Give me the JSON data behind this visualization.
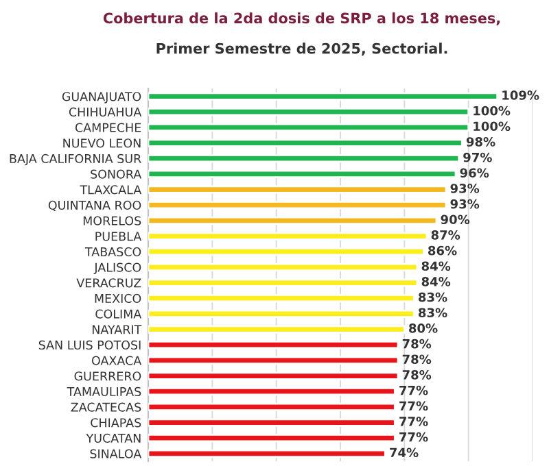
{
  "chart_data": {
    "type": "bar",
    "orientation": "horizontal",
    "title": "Cobertura de la 2da dosis de SRP a los 18 meses,",
    "subtitle": "Primer Semestre de 2025, Sectorial.",
    "categories": [
      "GUANAJUATO",
      "CHIHUAHUA",
      "CAMPECHE",
      "NUEVO LEON",
      "BAJA CALIFORNIA SUR",
      "SONORA",
      "TLAXCALA",
      "QUINTANA ROO",
      "MORELOS",
      "PUEBLA",
      "TABASCO",
      "JALISCO",
      "VERACRUZ",
      "MEXICO",
      "COLIMA",
      "NAYARIT",
      "SAN LUIS POTOSI",
      "OAXACA",
      "GUERRERO",
      "TAMAULIPAS",
      "ZACATECAS",
      "CHIAPAS",
      "YUCATAN",
      "SINALOA"
    ],
    "values": [
      109,
      100,
      100,
      98,
      97,
      96,
      93,
      93,
      90,
      87,
      86,
      84,
      84,
      83,
      83,
      80,
      78,
      78,
      78,
      77,
      77,
      77,
      77,
      74
    ],
    "value_labels": [
      "109%",
      "100%",
      "100%",
      "98%",
      "97%",
      "96%",
      "93%",
      "93%",
      "90%",
      "87%",
      "86%",
      "84%",
      "84%",
      "83%",
      "83%",
      "80%",
      "78%",
      "78%",
      "78%",
      "77%",
      "77%",
      "77%",
      "77%",
      "74%"
    ],
    "colors": [
      "#1fb550",
      "#1fb550",
      "#1fb550",
      "#1fb550",
      "#1fb550",
      "#1fb550",
      "#f2b81c",
      "#f2b81c",
      "#f2b81c",
      "#fbee1c",
      "#fbee1c",
      "#fbee1c",
      "#fbee1c",
      "#fbee1c",
      "#fbee1c",
      "#fbee1c",
      "#e8141a",
      "#e8141a",
      "#e8141a",
      "#e8141a",
      "#e8141a",
      "#e8141a",
      "#e8141a",
      "#e8141a"
    ],
    "xlim": [
      0,
      120
    ],
    "xticks": [
      {
        "value": 0,
        "label": null
      },
      {
        "value": 20,
        "label": null
      },
      {
        "value": 40,
        "label": null
      },
      {
        "value": 60,
        "label": null
      },
      {
        "value": 80,
        "label": null
      },
      {
        "value": 100,
        "label": null
      },
      {
        "value": 120,
        "label": null
      }
    ],
    "grid": "x",
    "tick_labels": "y",
    "legend": false
  }
}
